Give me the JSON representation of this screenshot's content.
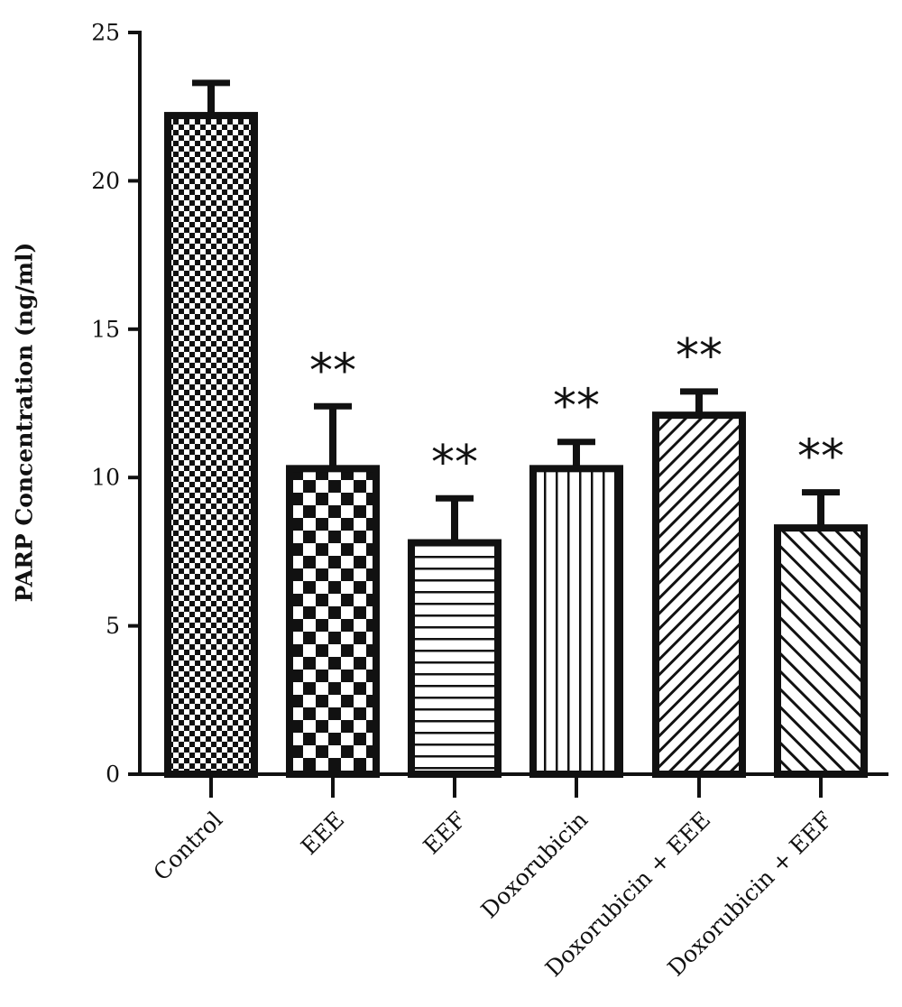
{
  "chart_data": {
    "type": "bar",
    "title": "",
    "xlabel": "",
    "ylabel": "PARP Concentration (ng/ml)",
    "ylim": [
      0,
      25
    ],
    "yticks": [
      "0",
      "5",
      "10",
      "15",
      "20",
      "25"
    ],
    "grid": false,
    "categories": [
      "Control",
      "EEE",
      "EEF",
      "Doxorubicin",
      "Doxorubicin + EEE",
      "Doxorubicin + EEF"
    ],
    "values": [
      22.2,
      10.3,
      7.8,
      10.3,
      12.1,
      8.3
    ],
    "errors": [
      1.1,
      2.1,
      1.5,
      0.9,
      0.8,
      1.2
    ],
    "annotations": [
      "",
      "**",
      "**",
      "**",
      "**",
      "**"
    ],
    "patterns": [
      "fine-checker",
      "coarse-checker",
      "horizontal-lines",
      "vertical-lines",
      "diagonal-right",
      "diagonal-left"
    ],
    "colors": {
      "bar_edge": "#111111",
      "bar_fill": "#ffffff",
      "ink": "#111111"
    }
  }
}
